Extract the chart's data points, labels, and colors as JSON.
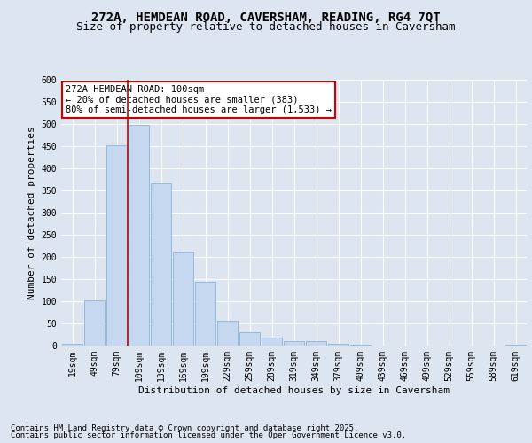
{
  "title_line1": "272A, HEMDEAN ROAD, CAVERSHAM, READING, RG4 7QT",
  "title_line2": "Size of property relative to detached houses in Caversham",
  "xlabel": "Distribution of detached houses by size in Caversham",
  "ylabel": "Number of detached properties",
  "categories": [
    "19sqm",
    "49sqm",
    "79sqm",
    "109sqm",
    "139sqm",
    "169sqm",
    "199sqm",
    "229sqm",
    "259sqm",
    "289sqm",
    "319sqm",
    "349sqm",
    "379sqm",
    "409sqm",
    "439sqm",
    "469sqm",
    "499sqm",
    "529sqm",
    "559sqm",
    "589sqm",
    "619sqm"
  ],
  "values": [
    5,
    103,
    453,
    498,
    366,
    212,
    145,
    57,
    30,
    19,
    11,
    10,
    4,
    2,
    1,
    0,
    0,
    0,
    0,
    1,
    2
  ],
  "bar_color": "#c5d8f0",
  "bar_edge_color": "#7aadd4",
  "vline_x": 2.5,
  "vline_color": "#cc0000",
  "annotation_title": "272A HEMDEAN ROAD: 100sqm",
  "annotation_line2": "← 20% of detached houses are smaller (383)",
  "annotation_line3": "80% of semi-detached houses are larger (1,533) →",
  "annotation_box_color": "#cc0000",
  "annotation_fill": "#ffffff",
  "ylim": [
    0,
    600
  ],
  "yticks": [
    0,
    50,
    100,
    150,
    200,
    250,
    300,
    350,
    400,
    450,
    500,
    550,
    600
  ],
  "footer_line1": "Contains HM Land Registry data © Crown copyright and database right 2025.",
  "footer_line2": "Contains public sector information licensed under the Open Government Licence v3.0.",
  "background_color": "#dde5f0",
  "plot_background": "#dde5f0",
  "grid_color": "#ffffff",
  "title_fontsize": 10,
  "subtitle_fontsize": 9,
  "axis_label_fontsize": 8,
  "tick_fontsize": 7,
  "footer_fontsize": 6.5,
  "ann_fontsize": 7.5
}
